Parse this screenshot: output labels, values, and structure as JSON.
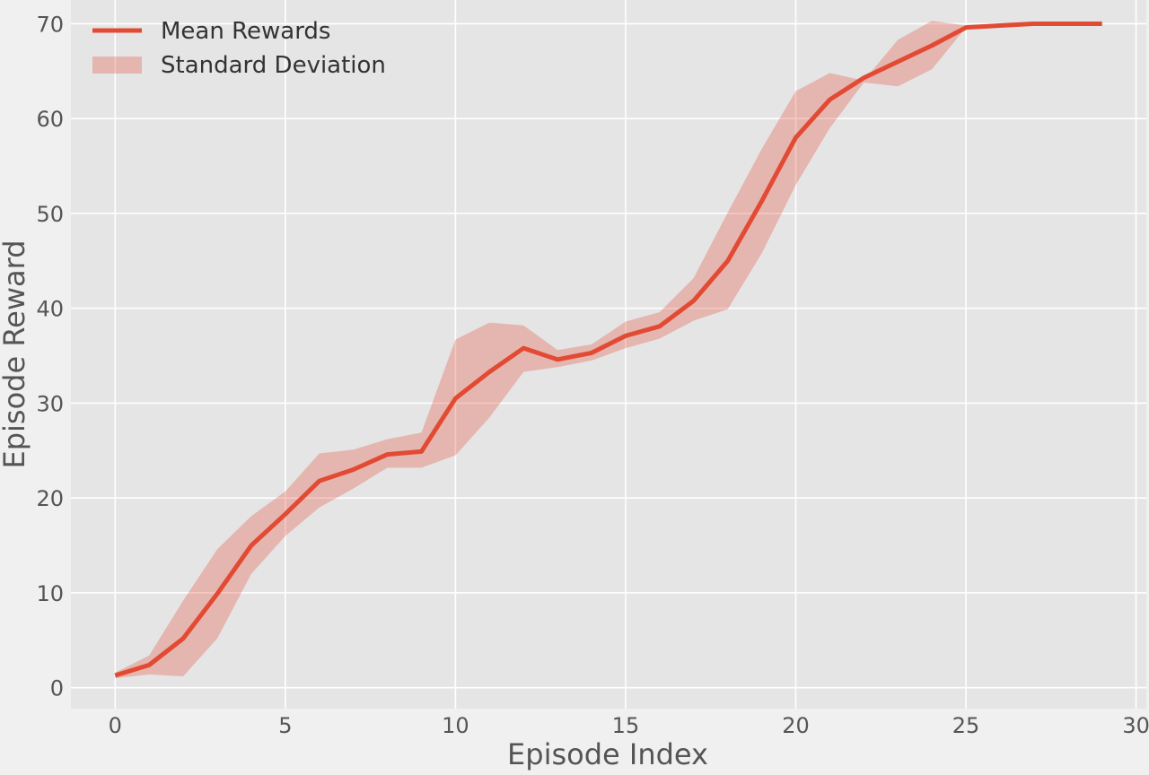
{
  "chart_data": {
    "type": "line",
    "title": "",
    "xlabel": "Episode Index",
    "ylabel": "Episode Reward",
    "xlim": [
      -1.3,
      30.3
    ],
    "ylim": [
      -2.2,
      72.5
    ],
    "xticks": [
      0,
      5,
      10,
      15,
      20,
      25,
      30
    ],
    "yticks": [
      0,
      10,
      20,
      30,
      40,
      50,
      60,
      70
    ],
    "grid": true,
    "legend_position": "top-left",
    "x": [
      0,
      1,
      2,
      3,
      4,
      5,
      6,
      7,
      8,
      9,
      10,
      11,
      12,
      13,
      14,
      15,
      16,
      17,
      18,
      19,
      20,
      21,
      22,
      23,
      24,
      25,
      26,
      27,
      28,
      29
    ],
    "series": [
      {
        "name": "Mean Rewards",
        "kind": "line",
        "color": "#e24a33",
        "values": [
          1.3,
          2.4,
          5.2,
          9.9,
          15.0,
          18.3,
          21.8,
          23.0,
          24.6,
          24.9,
          30.5,
          33.3,
          35.8,
          34.6,
          35.3,
          37.1,
          38.1,
          40.8,
          45.0,
          51.3,
          58.0,
          62.0,
          64.3,
          66.0,
          67.7,
          69.6,
          69.8,
          70.0,
          70.0,
          70.0
        ]
      },
      {
        "name": "Standard Deviation",
        "kind": "band",
        "color": "#e24a33",
        "opacity": 0.3,
        "lower": [
          1.0,
          1.4,
          1.2,
          5.2,
          12.0,
          16.0,
          19.0,
          21.0,
          23.2,
          23.2,
          24.5,
          28.5,
          33.3,
          33.8,
          34.5,
          35.8,
          36.8,
          38.7,
          39.9,
          45.8,
          53.0,
          59.0,
          63.8,
          63.4,
          65.2,
          69.6,
          69.8,
          70.0,
          70.0,
          70.0
        ],
        "upper": [
          1.6,
          3.4,
          9.2,
          14.6,
          18.1,
          20.7,
          24.7,
          25.1,
          26.2,
          26.9,
          36.7,
          38.5,
          38.2,
          35.6,
          36.2,
          38.6,
          39.6,
          43.2,
          50.1,
          56.8,
          62.9,
          64.8,
          64.0,
          68.3,
          70.3,
          69.8,
          69.8,
          70.0,
          70.0,
          70.0
        ]
      }
    ]
  }
}
